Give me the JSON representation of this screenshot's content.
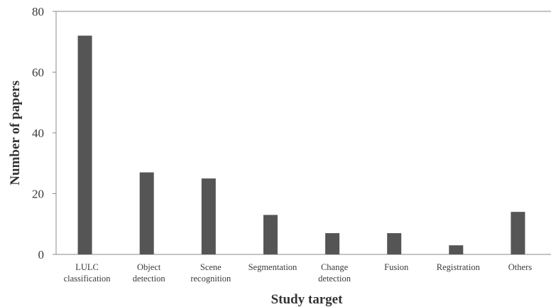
{
  "chart_data": {
    "type": "bar",
    "xlabel": "Study target",
    "ylabel": "Number of papers",
    "ylim": [
      0,
      80
    ],
    "yticks": [
      "0",
      "20",
      "40",
      "60",
      "80"
    ],
    "grid": false,
    "legend": "none",
    "bar_color": "#555555",
    "categories": [
      [
        "LULC",
        "classification"
      ],
      [
        "Object",
        "detection"
      ],
      [
        "Scene",
        "recognition"
      ],
      [
        "Segmentation"
      ],
      [
        "Change",
        "detection"
      ],
      [
        "Fusion"
      ],
      [
        "Registration"
      ],
      [
        "Others"
      ]
    ],
    "values": [
      72,
      27,
      25,
      13,
      7,
      7,
      3,
      14
    ]
  }
}
